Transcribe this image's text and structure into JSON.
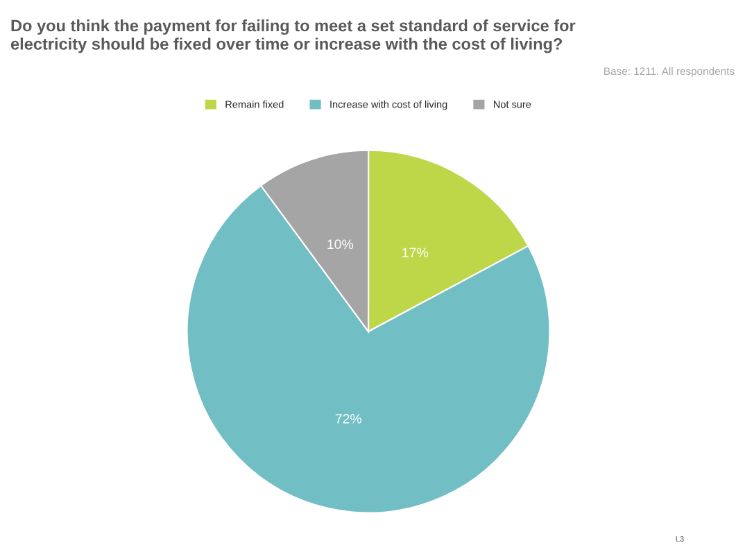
{
  "chart_data": {
    "type": "pie",
    "title": "Do you think the payment for failing to meet a set standard of service for\nelectricity should be fixed over time or increase with the cost of living?",
    "categories": [
      "Remain fixed",
      "Increase with cost of living",
      "Not sure"
    ],
    "values": [
      17,
      72,
      10
    ],
    "colors": [
      "#bdd749",
      "#72bec5",
      "#a5a5a5"
    ],
    "value_labels": [
      "17%",
      "72%",
      "10%"
    ],
    "legend": "top",
    "annotations": [
      "Base: 1211. All respondents",
      "L3"
    ]
  }
}
